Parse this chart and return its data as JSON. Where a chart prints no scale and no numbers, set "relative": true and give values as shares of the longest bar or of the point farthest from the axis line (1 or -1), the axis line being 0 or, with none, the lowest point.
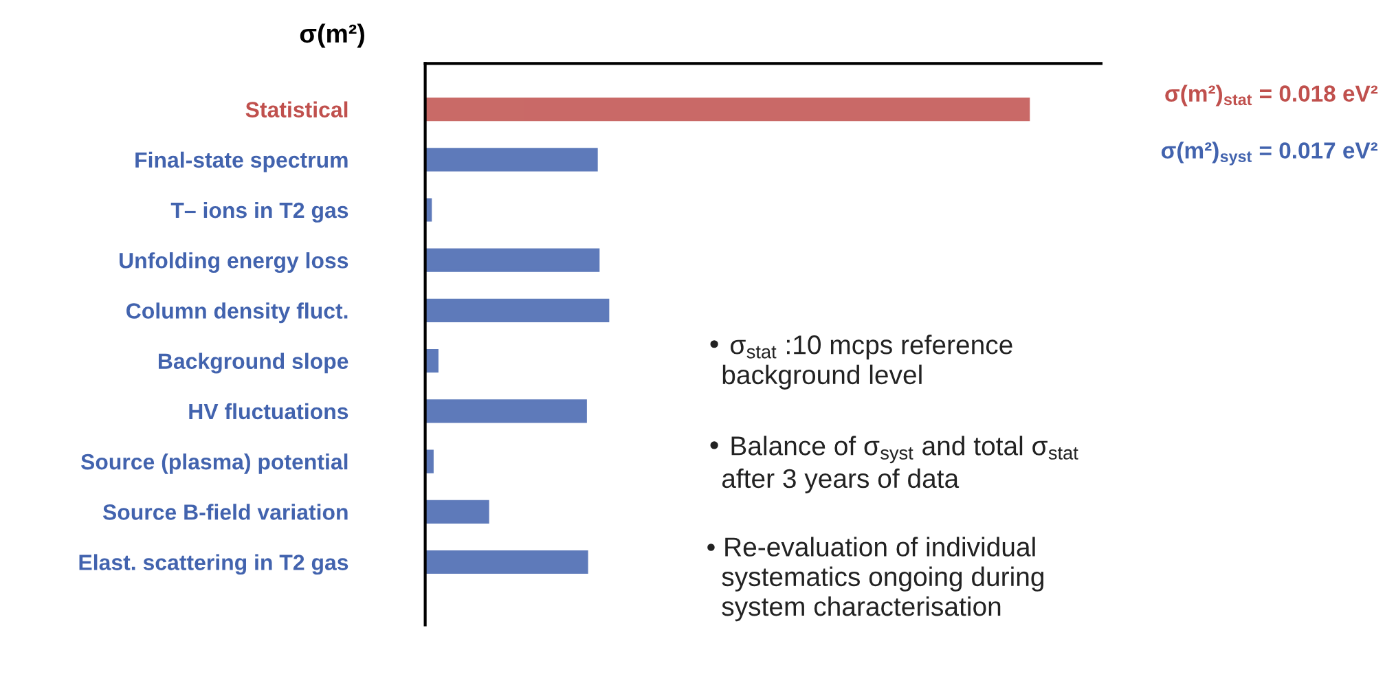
{
  "chart_data": {
    "type": "bar",
    "orientation": "horizontal",
    "relative": true,
    "title": "σ(m²)",
    "categories": [
      "Statistical",
      "Final-state spectrum",
      "T– ions in T2 gas",
      "Unfolding energy loss",
      "Column density fluct.",
      "Background slope",
      "HV fluctuations",
      "Source (plasma) potential",
      "Source B-field variation",
      "Elast. scattering in T2 gas"
    ],
    "values": [
      1,
      0.284,
      0.009,
      0.287,
      0.303,
      0.02,
      0.266,
      0.012,
      0.104,
      0.268
    ],
    "colors": [
      "#c0504d",
      "#4263ae",
      "#4263ae",
      "#4263ae",
      "#4263ae",
      "#4263ae",
      "#4263ae",
      "#4263ae",
      "#4263ae",
      "#4263ae"
    ],
    "annotations": [
      "σ(m²)$_{stat}$ = 0.018 eV²",
      "σ(m²)$_{syst}$ = 0.017 eV²",
      "• σ$_{stat}$ :10 mcps reference\n  background level",
      "• Balance of σ$_{syst}$ and total σ$_{stat}$\n  after 3 years of data",
      "• Re-evaluation of individual\n  systematics ongoing during\n  system characterisation"
    ],
    "grid": false,
    "legend": false
  }
}
